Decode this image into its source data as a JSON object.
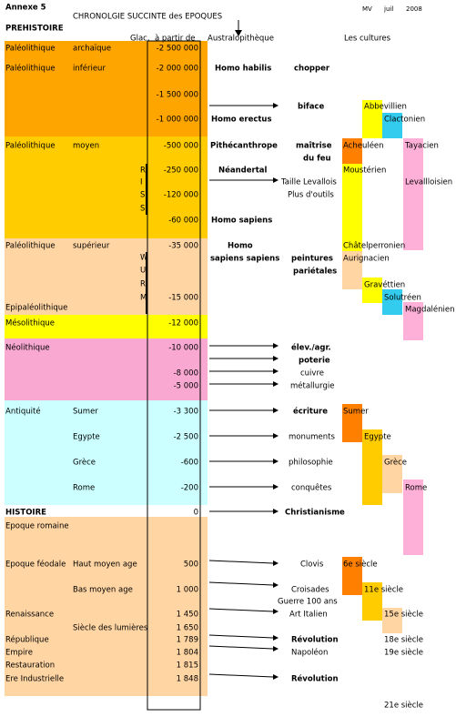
{
  "header": {
    "annex": "Annexe 5",
    "title": "CHRONOLGIE SUCCINTE des EPOQUES",
    "author": "MV",
    "month": "juil",
    "year": "2008",
    "section": "PREHISTOIRE",
    "col_glac": "Glac.",
    "col_date": "à partir de",
    "col_event": "Australopithèque",
    "col_cultures": "Les cultures"
  },
  "periods": [
    "Paléolithique",
    "archaïque",
    "Paléolithique",
    "inférieur",
    "Paléolithique",
    "moyen",
    "Paléolithique",
    "supérieur",
    "Epipaléolithique",
    "Mésolithique",
    "Néolithique",
    "Antiquité",
    "Sumer",
    "Egypte",
    "Grèce",
    "Rome",
    "HISTOIRE",
    "Epoque romaine",
    "Epoque féodale",
    "Haut moyen age",
    "Bas moyen age",
    "Renaissance",
    "Siècle des lumières",
    "République",
    "Empire",
    "Restauration",
    "Ere Industrielle"
  ],
  "dates": [
    "-2 500 000",
    "-2 000 000",
    "-1 500 000",
    "-1 000 000",
    "-500 000",
    "-250 000",
    "-120 000",
    "-60 000",
    "-35 000",
    "-15 000",
    "-12 000",
    "-10 000",
    "-8 000",
    "-5 000",
    "-3 300",
    "-2 500",
    "-600",
    "-200",
    "0",
    "500",
    "1 000",
    "1 450",
    "1 650",
    "1 789",
    "1 804",
    "1 815",
    "1 848"
  ],
  "glaciations": [
    "R",
    "I",
    "S",
    "S",
    "W",
    "U",
    "R",
    "M"
  ],
  "events": [
    "Homo habilis",
    "chopper",
    "biface",
    "Homo erectus",
    "Pithécanthrope",
    "maîtrise",
    "du feu",
    "Néandertal",
    "Taille Levallois",
    "Plus d'outils",
    "Homo sapiens",
    "Homo",
    "sapiens sapiens",
    "peintures",
    "pariétales",
    "élev./agr.",
    "poterie",
    "cuivre",
    "métallurgie",
    "écriture",
    "monuments",
    "philosophie",
    "conquêtes",
    "Christianisme",
    "Clovis",
    "Croisades",
    "Guerre 100 ans",
    "Art Italien",
    "Révolution",
    "Napoléon",
    "Révolution"
  ],
  "cultures": [
    "Abbevillien",
    "Clactonien",
    "Acheuléen",
    "Tayacien",
    "Moustérien",
    "Levallloisien",
    "Châtelperronien",
    "Aurignacien",
    "Gravéttien",
    "Solutréen",
    "Magdalénien",
    "Sumer",
    "Egypte",
    "Grèce",
    "Rome",
    "6e siècle",
    "11e siècle",
    "15e siècle",
    "18e siècle",
    "19e siècle",
    "21e siècle"
  ]
}
